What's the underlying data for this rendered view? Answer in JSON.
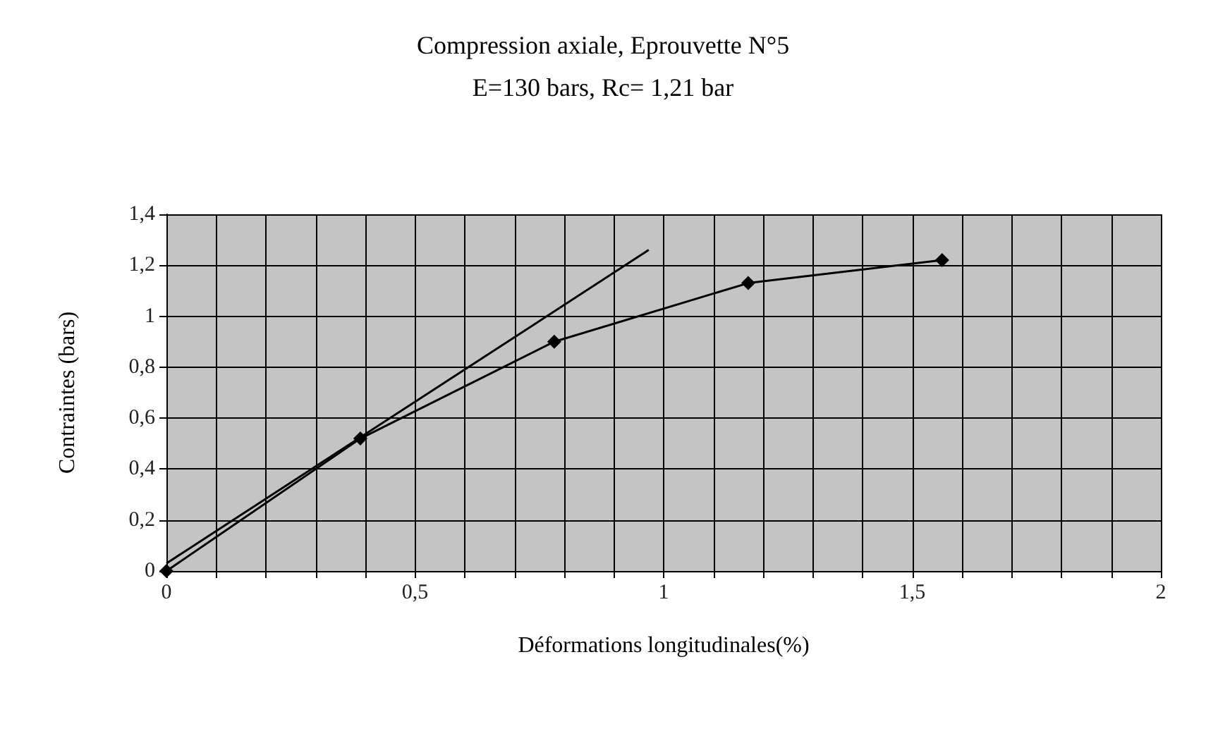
{
  "chart_data": {
    "type": "line",
    "title": "Compression axiale, Eprouvette N°5",
    "subtitle": "E=130 bars, Rc= 1,21 bar",
    "xlabel": "Déformations longitudinales(%)",
    "ylabel": "Contraintes (bars)",
    "series": [
      {
        "color": "#000000",
        "x": [
          0,
          0.39,
          0.78,
          1.17,
          1.56
        ],
        "values": [
          0,
          0.52,
          0.9,
          1.13,
          1.22
        ],
        "marker": "diamond"
      },
      {
        "color": "#000000",
        "x": [
          0,
          0.97
        ],
        "values": [
          0.03,
          1.26
        ],
        "marker": "none"
      }
    ],
    "xlim": [
      0,
      2
    ],
    "ylim": [
      0,
      1.4
    ],
    "xticks": [
      0,
      {
        "value": 0.1,
        "label": null
      },
      {
        "value": 0.2,
        "label": null
      },
      {
        "value": 0.3,
        "label": null
      },
      {
        "value": 0.4,
        "label": null
      },
      {
        "value": 0.5,
        "label": "0,5"
      },
      {
        "value": 0.6,
        "label": null
      },
      {
        "value": 0.7,
        "label": null
      },
      {
        "value": 0.8,
        "label": null
      },
      {
        "value": 0.9,
        "label": null
      },
      1,
      {
        "value": 1.1,
        "label": null
      },
      {
        "value": 1.2,
        "label": null
      },
      {
        "value": 1.3,
        "label": null
      },
      {
        "value": 1.4,
        "label": null
      },
      {
        "value": 1.5,
        "label": "1,5"
      },
      {
        "value": 1.6,
        "label": null
      },
      {
        "value": 1.7,
        "label": null
      },
      {
        "value": 1.8,
        "label": null
      },
      {
        "value": 1.9,
        "label": null
      },
      2
    ],
    "yticks": [
      0,
      {
        "value": 0.2,
        "label": "0,2"
      },
      {
        "value": 0.4,
        "label": "0,4"
      },
      {
        "value": 0.6,
        "label": "0,6"
      },
      {
        "value": 0.8,
        "label": "0,8"
      },
      1,
      {
        "value": 1.2,
        "label": "1,2"
      },
      {
        "value": 1.4,
        "label": "1,4"
      }
    ],
    "grid": true,
    "line_style": "solid"
  }
}
